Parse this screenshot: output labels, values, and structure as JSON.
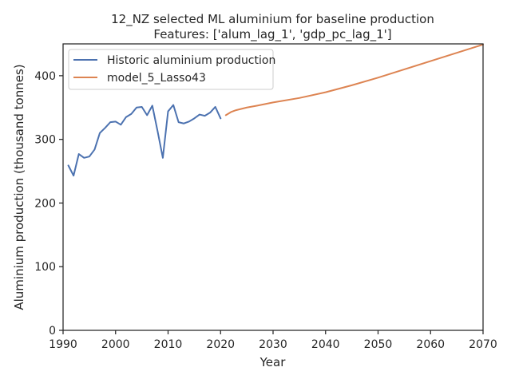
{
  "chart_data": {
    "type": "line",
    "title_line1": "12_NZ selected ML aluminium for baseline production",
    "title_line2": "Features: ['alum_lag_1', 'gdp_pc_lag_1']",
    "xlabel": "Year",
    "ylabel": "Aluminium production (thousand tonnes)",
    "xlim": [
      1990,
      2070
    ],
    "ylim": [
      0,
      450
    ],
    "xticks": [
      1990,
      2000,
      2010,
      2020,
      2030,
      2040,
      2050,
      2060,
      2070
    ],
    "yticks": [
      0,
      100,
      200,
      300,
      400
    ],
    "grid": false,
    "legend_position": "top-left",
    "series": [
      {
        "name": "Historic aluminium production",
        "color": "#4c72b0",
        "x": [
          1991,
          1992,
          1993,
          1994,
          1995,
          1996,
          1997,
          1998,
          1999,
          2000,
          2001,
          2002,
          2003,
          2004,
          2005,
          2006,
          2007,
          2008,
          2009,
          2010,
          2011,
          2012,
          2013,
          2014,
          2015,
          2016,
          2017,
          2018,
          2019,
          2020
        ],
        "y": [
          259,
          243,
          277,
          271,
          273,
          284,
          310,
          318,
          327,
          328,
          323,
          335,
          340,
          350,
          351,
          338,
          353,
          313,
          271,
          344,
          354,
          327,
          325,
          328,
          333,
          339,
          337,
          342,
          351,
          333
        ]
      },
      {
        "name": "model_5_Lasso43",
        "color": "#dd8452",
        "x": [
          2021,
          2022,
          2023,
          2025,
          2027,
          2030,
          2035,
          2040,
          2045,
          2050,
          2055,
          2060,
          2065,
          2070
        ],
        "y": [
          338,
          343,
          346,
          350,
          353,
          358,
          365,
          374,
          385,
          397,
          410,
          423,
          436,
          449
        ]
      }
    ]
  }
}
